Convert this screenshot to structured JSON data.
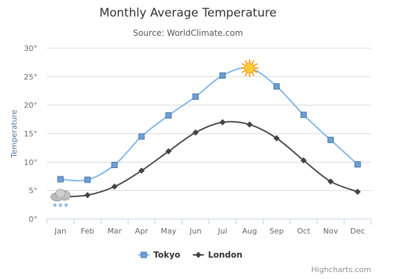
{
  "chart_data": {
    "type": "line",
    "title": "Monthly Average Temperature",
    "subtitle": "Source: WorldClimate.com",
    "ylabel": "Temperature",
    "y_tick_suffix": "°",
    "ylim": [
      0,
      30
    ],
    "y_ticks": [
      0,
      5,
      10,
      15,
      20,
      25,
      30
    ],
    "categories": [
      "Jan",
      "Feb",
      "Mar",
      "Apr",
      "May",
      "Jun",
      "Jul",
      "Aug",
      "Sep",
      "Oct",
      "Nov",
      "Dec"
    ],
    "grid": true,
    "legend_position": "bottom-center",
    "series": [
      {
        "name": "Tokyo",
        "values": [
          7.0,
          6.9,
          9.5,
          14.5,
          18.2,
          21.5,
          25.2,
          26.5,
          23.3,
          18.3,
          13.9,
          9.6
        ],
        "color": "#7cb5ec",
        "marker_fill": "#6e9fd6",
        "marker": "square",
        "special_markers": [
          {
            "index": 7,
            "icon": "sun-icon"
          }
        ]
      },
      {
        "name": "London",
        "values": [
          3.9,
          4.2,
          5.7,
          8.5,
          11.9,
          15.2,
          17.0,
          16.6,
          14.2,
          10.3,
          6.6,
          4.8
        ],
        "color": "#434348",
        "marker": "diamond",
        "special_markers": [
          {
            "index": 0,
            "icon": "snow-cloud-icon"
          }
        ]
      }
    ],
    "credits": "Highcharts.com"
  }
}
